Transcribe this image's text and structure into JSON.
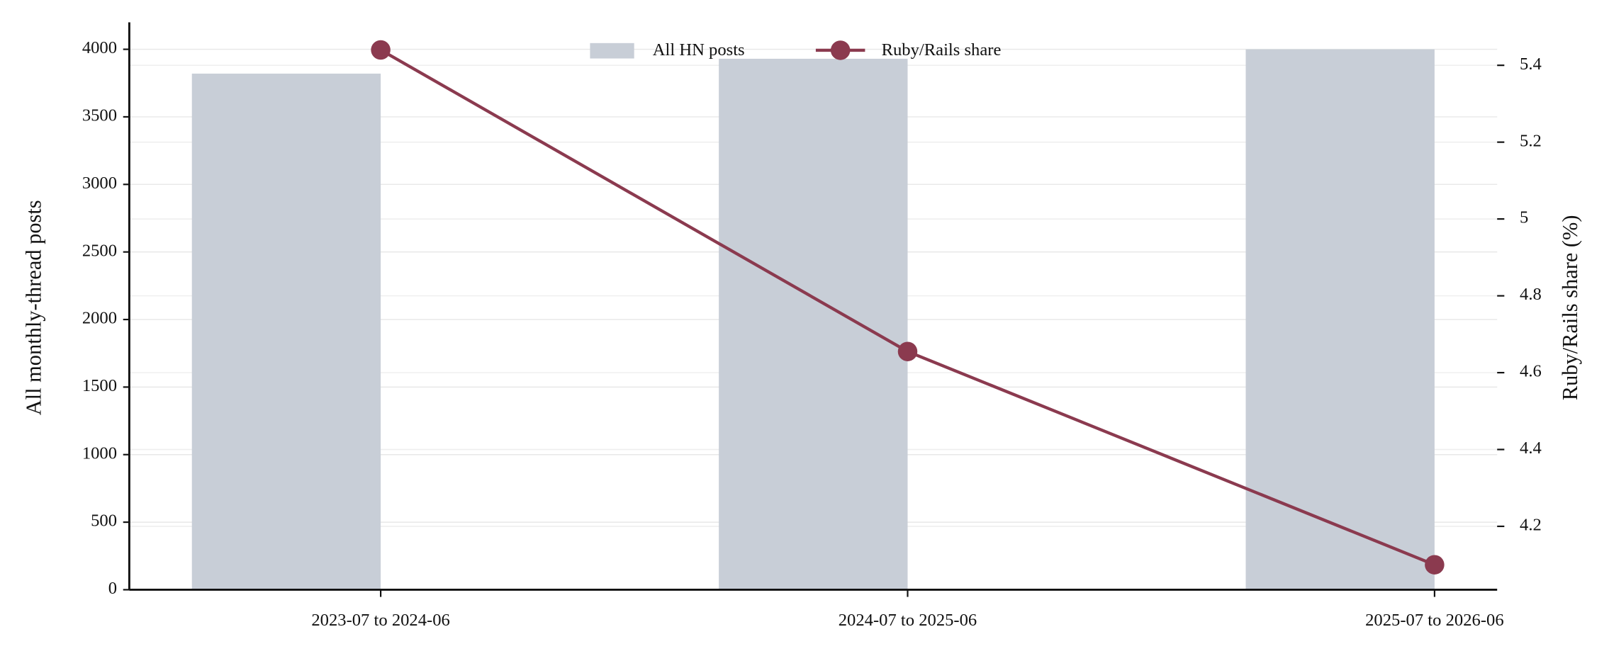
{
  "chart_data": {
    "type": "bar_line",
    "categories": [
      "2023-07 to 2024-06",
      "2024-07 to 2025-06",
      "2025-07 to 2026-06"
    ],
    "series": [
      {
        "name": "All HN posts",
        "type": "bar",
        "color": "#c8ced7",
        "values": [
          3820,
          3930,
          4000
        ]
      },
      {
        "name": "Ruby/Rails share",
        "type": "line",
        "axis": "y2",
        "color": "#8b3a4f",
        "values": [
          5.44,
          4.655,
          4.1
        ]
      }
    ],
    "ylabel": "All monthly-thread posts",
    "y2label": "Ruby/Rails share (%)",
    "ylim": [
      0,
      4200
    ],
    "yticks": [
      0,
      500,
      1000,
      1500,
      2000,
      2500,
      3000,
      3500,
      4000
    ],
    "y2lim": [
      4.035,
      5.512
    ],
    "y2ticks": [
      4.2,
      4.4,
      4.6,
      4.8,
      5.0,
      5.2,
      5.4
    ],
    "grid": true,
    "legend": "top-center"
  }
}
